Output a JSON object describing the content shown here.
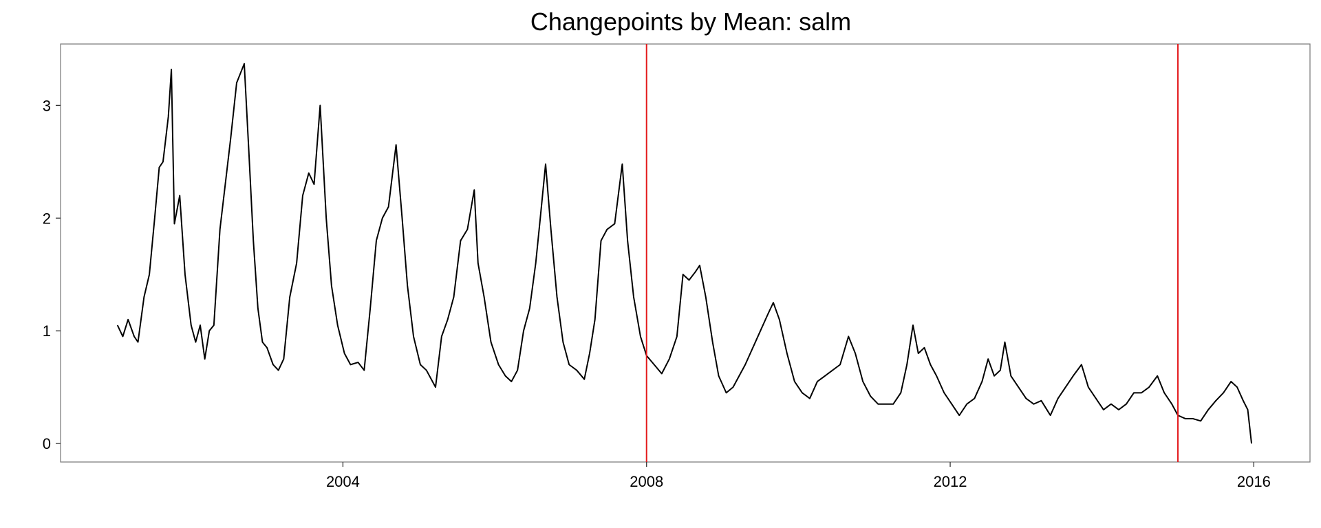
{
  "chart_data": {
    "type": "line",
    "title": "Changepoints by Mean: salm",
    "x": [
      2001.03,
      2001.1,
      2001.17,
      2001.25,
      2001.3,
      2001.38,
      2001.45,
      2001.52,
      2001.58,
      2001.63,
      2001.7,
      2001.74,
      2001.78,
      2001.85,
      2001.92,
      2002.0,
      2002.06,
      2002.12,
      2002.18,
      2002.24,
      2002.3,
      2002.38,
      2002.45,
      2002.52,
      2002.6,
      2002.7,
      2002.76,
      2002.82,
      2002.88,
      2002.94,
      2003.0,
      2003.08,
      2003.15,
      2003.22,
      2003.3,
      2003.39,
      2003.47,
      2003.55,
      2003.62,
      2003.7,
      2003.78,
      2003.85,
      2003.93,
      2004.02,
      2004.1,
      2004.2,
      2004.28,
      2004.36,
      2004.44,
      2004.52,
      2004.6,
      2004.7,
      2004.78,
      2004.85,
      2004.93,
      2005.02,
      2005.1,
      2005.22,
      2005.3,
      2005.38,
      2005.46,
      2005.55,
      2005.64,
      2005.73,
      2005.78,
      2005.86,
      2005.95,
      2006.05,
      2006.14,
      2006.22,
      2006.3,
      2006.38,
      2006.46,
      2006.54,
      2006.6,
      2006.67,
      2006.74,
      2006.82,
      2006.9,
      2006.98,
      2007.08,
      2007.18,
      2007.25,
      2007.32,
      2007.4,
      2007.48,
      2007.58,
      2007.68,
      2007.75,
      2007.83,
      2007.92,
      2008.0,
      2008.1,
      2008.2,
      2008.3,
      2008.4,
      2008.48,
      2008.56,
      2008.64,
      2008.7,
      2008.78,
      2008.87,
      2008.95,
      2009.05,
      2009.14,
      2009.22,
      2009.3,
      2009.4,
      2009.5,
      2009.6,
      2009.67,
      2009.75,
      2009.85,
      2009.95,
      2010.05,
      2010.15,
      2010.25,
      2010.35,
      2010.45,
      2010.55,
      2010.66,
      2010.75,
      2010.85,
      2010.95,
      2011.05,
      2011.15,
      2011.25,
      2011.35,
      2011.43,
      2011.51,
      2011.58,
      2011.66,
      2011.74,
      2011.82,
      2011.92,
      2012.02,
      2012.12,
      2012.22,
      2012.32,
      2012.42,
      2012.5,
      2012.58,
      2012.66,
      2012.72,
      2012.8,
      2012.9,
      2013.0,
      2013.1,
      2013.2,
      2013.32,
      2013.42,
      2013.52,
      2013.62,
      2013.73,
      2013.82,
      2013.92,
      2014.02,
      2014.12,
      2014.22,
      2014.32,
      2014.42,
      2014.52,
      2014.62,
      2014.73,
      2014.82,
      2014.92,
      2015.0,
      2015.1,
      2015.2,
      2015.3,
      2015.4,
      2015.5,
      2015.6,
      2015.7,
      2015.78,
      2015.86,
      2015.92,
      2015.97
    ],
    "values": [
      1.05,
      0.95,
      1.1,
      0.95,
      0.9,
      1.3,
      1.5,
      2.0,
      2.45,
      2.5,
      2.9,
      3.32,
      1.95,
      2.2,
      1.5,
      1.05,
      0.9,
      1.05,
      0.75,
      1.0,
      1.05,
      1.9,
      2.3,
      2.7,
      3.2,
      3.37,
      2.6,
      1.8,
      1.2,
      0.9,
      0.85,
      0.7,
      0.65,
      0.75,
      1.3,
      1.6,
      2.2,
      2.4,
      2.3,
      3.0,
      2.0,
      1.4,
      1.05,
      0.8,
      0.7,
      0.72,
      0.65,
      1.2,
      1.8,
      2.0,
      2.1,
      2.65,
      2.0,
      1.4,
      0.95,
      0.7,
      0.65,
      0.5,
      0.95,
      1.1,
      1.3,
      1.8,
      1.9,
      2.25,
      1.6,
      1.3,
      0.9,
      0.7,
      0.6,
      0.55,
      0.65,
      1.0,
      1.2,
      1.6,
      2.0,
      2.48,
      1.9,
      1.3,
      0.9,
      0.7,
      0.65,
      0.57,
      0.8,
      1.1,
      1.8,
      1.9,
      1.95,
      2.48,
      1.8,
      1.3,
      0.95,
      0.78,
      0.7,
      0.62,
      0.75,
      0.95,
      1.5,
      1.45,
      1.52,
      1.58,
      1.3,
      0.9,
      0.6,
      0.45,
      0.5,
      0.6,
      0.7,
      0.85,
      1.0,
      1.15,
      1.25,
      1.1,
      0.8,
      0.55,
      0.45,
      0.4,
      0.55,
      0.6,
      0.65,
      0.7,
      0.95,
      0.8,
      0.55,
      0.42,
      0.35,
      0.35,
      0.35,
      0.45,
      0.7,
      1.05,
      0.8,
      0.85,
      0.7,
      0.6,
      0.45,
      0.35,
      0.25,
      0.35,
      0.4,
      0.55,
      0.75,
      0.6,
      0.65,
      0.9,
      0.6,
      0.5,
      0.4,
      0.35,
      0.38,
      0.25,
      0.4,
      0.5,
      0.6,
      0.7,
      0.5,
      0.4,
      0.3,
      0.35,
      0.3,
      0.35,
      0.45,
      0.45,
      0.5,
      0.6,
      0.45,
      0.35,
      0.25,
      0.22,
      0.22,
      0.2,
      0.3,
      0.38,
      0.45,
      0.55,
      0.5,
      0.38,
      0.3,
      0.0
    ],
    "color": "#000000",
    "changepoints": [
      2008.0,
      2015.0
    ],
    "changepoint_color": "#e41a1c",
    "xlim": [
      2000.28,
      2016.74
    ],
    "xticks": [
      2004,
      2008,
      2012,
      2016
    ],
    "ylim": [
      -0.164,
      3.545
    ],
    "yticks": [
      0,
      1,
      2,
      3
    ]
  }
}
